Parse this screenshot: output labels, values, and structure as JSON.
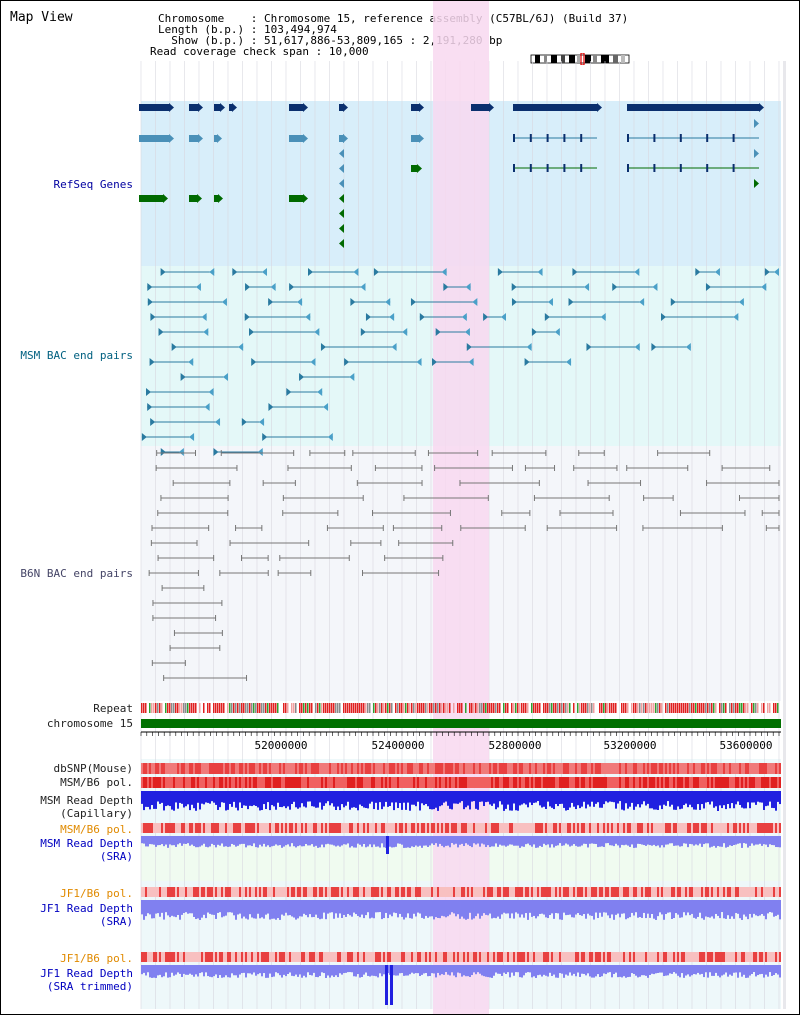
{
  "page": {
    "title": "Map View"
  },
  "header": {
    "lines": [
      {
        "key": "Chromosome    ",
        "value": "Chromosome 15, reference assembly (C57BL/6J) (Build 37)"
      },
      {
        "key": "Length (b.p.) ",
        "value": "103,494,974"
      },
      {
        "key": "  Show (b.p.) ",
        "value": "51,617,886-53,809,165 : 2,191,280 bp"
      },
      {
        "key": "Read coverage check span ",
        "value": "10,000"
      }
    ]
  },
  "tracks": {
    "refseq": "RefSeq Genes",
    "msm_bac": "MSM BAC end pairs",
    "b6n_bac": "B6N BAC end pairs",
    "repeat": "Repeat",
    "chromosome": "chromosome 15",
    "dbsnp": "dbSNP(Mouse)",
    "msm_b6_pol": "MSM/B6 pol.",
    "msm_read_depth_cap_1": "MSM Read Depth",
    "msm_read_depth_cap_2": "(Capillary)",
    "msm_b6_pol_sra": "MSM/B6 pol.",
    "msm_read_depth_sra_1": "MSM Read Depth",
    "msm_read_depth_sra_2": "(SRA)",
    "jf1_b6_pol_1": "JF1/B6 pol.",
    "jf1_read_depth_sra_1": "JF1 Read Depth",
    "jf1_read_depth_sra_2": "(SRA)",
    "jf1_b6_pol_2": "JF1/B6 pol.",
    "jf1_read_depth_trim_1": "JF1 Read Depth",
    "jf1_read_depth_trim_2": "(SRA trimmed)"
  },
  "axis": {
    "ticks": [
      "52000000",
      "52400000",
      "52800000",
      "53200000",
      "53600000"
    ]
  },
  "colors": {
    "refseq_bg": "#d8eefa",
    "msm_bg": "#e4f8f8",
    "b6n_bg": "#f4f6fa",
    "highlight": "#f8d8f0",
    "gene_navy": "#0a2f6e",
    "gene_light": "#4a90b8",
    "gene_green": "#006a00",
    "msm_line": "#2a7aa0",
    "b6n_line": "#777777",
    "chromosome_bar": "#007000",
    "pol_red": "#e03030",
    "depth_blue": "#2020e0",
    "depth_light": "#8080f0"
  }
}
